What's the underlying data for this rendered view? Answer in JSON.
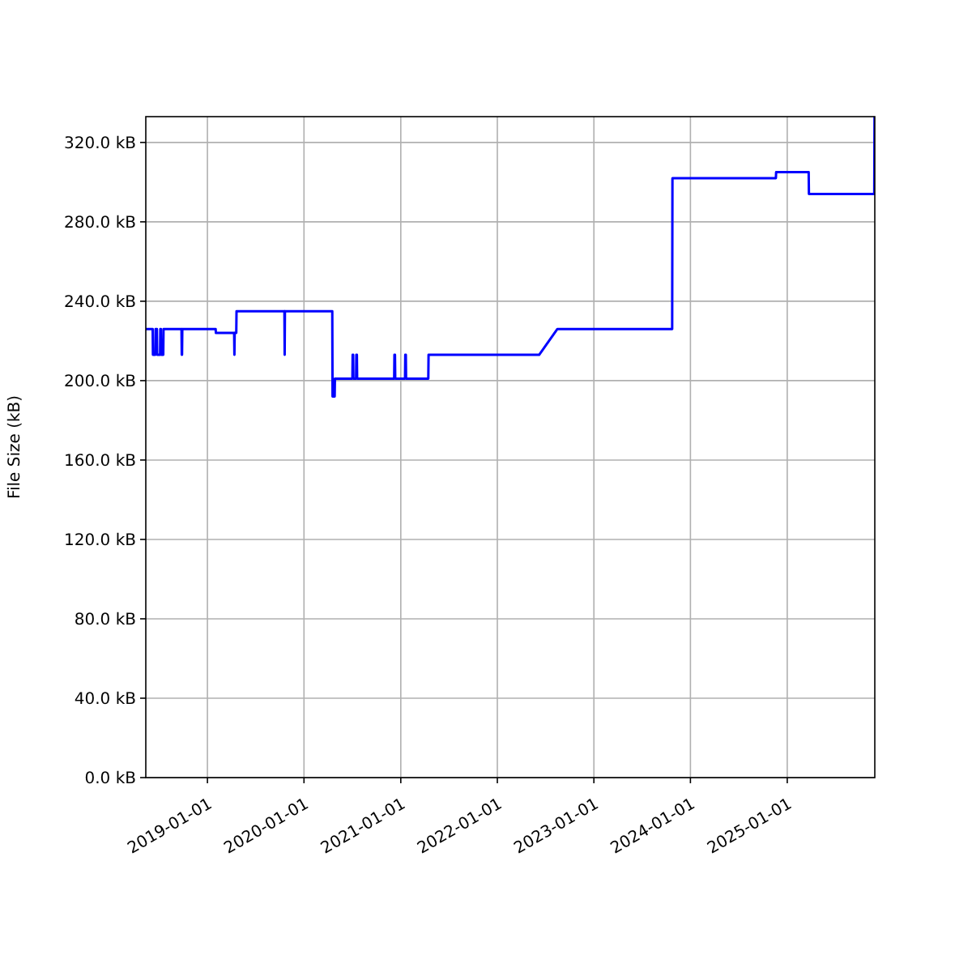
{
  "chart_data": {
    "type": "line",
    "ylabel": "File Size (kB)",
    "xlim": [
      "2018-05-13",
      "2025-11-28"
    ],
    "ylim": [
      0,
      333
    ],
    "xticks": [
      "2019-01-01",
      "2020-01-01",
      "2021-01-01",
      "2022-01-01",
      "2023-01-01",
      "2024-01-01",
      "2025-01-01"
    ],
    "yticks": [
      {
        "value": 0,
        "label": "0.0 kB"
      },
      {
        "value": 40,
        "label": "40.0 kB"
      },
      {
        "value": 80,
        "label": "80.0 kB"
      },
      {
        "value": 120,
        "label": "120.0 kB"
      },
      {
        "value": 160,
        "label": "160.0 kB"
      },
      {
        "value": 200,
        "label": "200.0 kB"
      },
      {
        "value": 240,
        "label": "240.0 kB"
      },
      {
        "value": 280,
        "label": "280.0 kB"
      },
      {
        "value": 320,
        "label": "320.0 kB"
      }
    ],
    "grid": true,
    "marker": "none",
    "line_style": "solid",
    "series": [
      {
        "color": "#0000ff",
        "x": [
          "2018-05-13",
          "2018-06-08",
          "2018-06-09",
          "2018-06-18",
          "2018-06-19",
          "2018-06-24",
          "2018-06-25",
          "2018-07-06",
          "2018-07-07",
          "2018-07-09",
          "2018-07-10",
          "2018-07-18",
          "2018-07-19",
          "2018-09-25",
          "2018-09-26",
          "2018-09-27",
          "2018-09-28",
          "2019-02-01",
          "2019-02-02",
          "2019-04-12",
          "2019-04-13",
          "2019-04-14",
          "2019-04-20",
          "2019-04-21",
          "2019-10-19",
          "2019-10-20",
          "2019-10-21",
          "2020-04-17",
          "2020-04-18",
          "2020-04-26",
          "2020-04-27",
          "2020-07-02",
          "2020-07-03",
          "2020-07-05",
          "2020-07-06",
          "2020-07-16",
          "2020-07-17",
          "2020-07-19",
          "2020-07-20",
          "2020-12-07",
          "2020-12-08",
          "2020-12-10",
          "2020-12-11",
          "2021-01-17",
          "2021-01-18",
          "2021-01-20",
          "2021-01-21",
          "2021-04-15",
          "2021-04-16",
          "2022-06-08",
          "2022-08-16",
          "2023-10-24",
          "2023-10-25",
          "2024-11-19",
          "2024-11-20",
          "2025-03-23",
          "2025-03-24",
          "2025-11-26",
          "2025-11-27"
        ],
        "values": [
          226,
          226,
          213,
          213,
          226,
          226,
          213,
          213,
          226,
          226,
          213,
          213,
          226,
          226,
          213,
          213,
          226,
          226,
          224,
          224,
          213,
          224,
          224,
          235,
          235,
          213,
          235,
          235,
          192,
          192,
          201,
          201,
          213,
          213,
          201,
          201,
          213,
          213,
          201,
          201,
          213,
          213,
          201,
          201,
          213,
          213,
          201,
          201,
          213,
          213,
          226,
          226,
          302,
          302,
          305,
          305,
          294,
          294,
          333
        ]
      }
    ]
  }
}
